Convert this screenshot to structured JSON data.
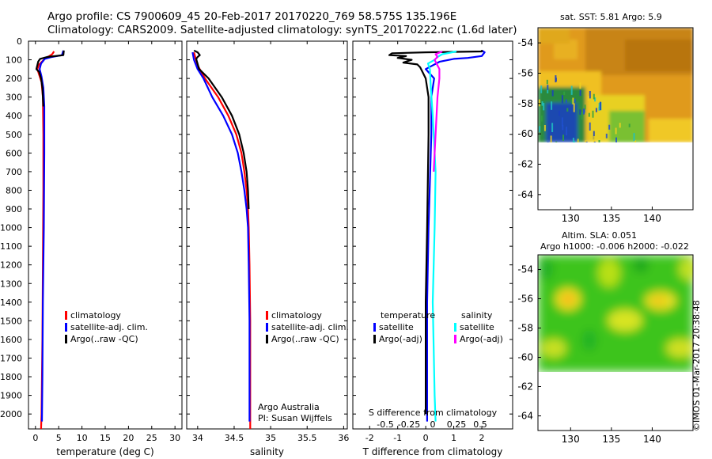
{
  "title_line1": "Argo profile: CS 7900609_45 20-Feb-2017 20170220_769 58.575S 135.196E",
  "title_line2": "Climatology: CARS2009. Satellite-adjusted climatology: synTS_20170222.nc (1.6d later)",
  "footer": "©IMOS 01-Mar-2017 20:38:48",
  "colors": {
    "climatology": "#ff0000",
    "satellite": "#0000ff",
    "argo": "#000000",
    "t_sat": "#0000ff",
    "s_sat": "#00ffff",
    "s_argo": "#ff00ff"
  },
  "depth_ticks": [
    0,
    100,
    200,
    300,
    400,
    500,
    600,
    700,
    800,
    900,
    1000,
    1100,
    1200,
    1300,
    1400,
    1500,
    1600,
    1700,
    1800,
    1900,
    2000
  ],
  "chart_data": [
    {
      "type": "line",
      "xlabel": "temperature (deg C)",
      "xticks": [
        0,
        5,
        10,
        15,
        20,
        25,
        30
      ],
      "xlim": [
        -1.5,
        31.5
      ],
      "ylim": [
        2080,
        0
      ],
      "legend": [
        "climatology",
        "satellite-adj. clim.",
        "Argo(..raw -QC)"
      ],
      "series": [
        {
          "name": "climatology",
          "color": "#ff0000",
          "points": [
            [
              4.0,
              55
            ],
            [
              3.6,
              70
            ],
            [
              2.0,
              95
            ],
            [
              0.8,
              125
            ],
            [
              0.4,
              150
            ],
            [
              0.8,
              180
            ],
            [
              1.3,
              220
            ],
            [
              1.6,
              300
            ],
            [
              1.7,
              500
            ],
            [
              1.7,
              800
            ],
            [
              1.6,
              1200
            ],
            [
              1.5,
              1600
            ],
            [
              1.3,
              2000
            ],
            [
              1.2,
              2080
            ]
          ]
        },
        {
          "name": "satellite-adj. clim.",
          "color": "#0000ff",
          "points": [
            [
              6.0,
              50
            ],
            [
              5.7,
              75
            ],
            [
              3.5,
              85
            ],
            [
              2.0,
              95
            ],
            [
              1.2,
              120
            ],
            [
              0.9,
              150
            ],
            [
              1.3,
              190
            ],
            [
              1.7,
              250
            ],
            [
              1.9,
              350
            ],
            [
              1.9,
              600
            ],
            [
              1.8,
              1000
            ],
            [
              1.6,
              1400
            ],
            [
              1.5,
              1800
            ],
            [
              1.4,
              2040
            ]
          ]
        },
        {
          "name": "Argo(..raw -QC)",
          "color": "#000000",
          "points": [
            [
              6.1,
              50
            ],
            [
              6.0,
              75
            ],
            [
              2.5,
              85
            ],
            [
              1.0,
              95
            ],
            [
              0.6,
              110
            ],
            [
              0.2,
              150
            ],
            [
              0.8,
              165
            ],
            [
              1.2,
              200
            ],
            [
              1.5,
              250
            ],
            [
              1.7,
              350
            ]
          ]
        }
      ]
    },
    {
      "type": "line",
      "xlabel": "salinity",
      "xticks": [
        34,
        34.5,
        35,
        35.5,
        36
      ],
      "xlim": [
        33.85,
        36.05
      ],
      "ylim": [
        2080,
        0
      ],
      "legend": [
        "climatology",
        "satellite-adj. clim.",
        "Argo(..raw -QC)"
      ],
      "series": [
        {
          "name": "climatology",
          "color": "#ff0000",
          "points": [
            [
              33.95,
              60
            ],
            [
              33.97,
              90
            ],
            [
              34.0,
              130
            ],
            [
              34.1,
              200
            ],
            [
              34.28,
              300
            ],
            [
              34.42,
              400
            ],
            [
              34.53,
              500
            ],
            [
              34.6,
              600
            ],
            [
              34.64,
              700
            ],
            [
              34.67,
              800
            ],
            [
              34.69,
              900
            ],
            [
              34.7,
              1000
            ],
            [
              34.71,
              1200
            ],
            [
              34.72,
              1500
            ],
            [
              34.72,
              1800
            ],
            [
              34.72,
              2080
            ]
          ]
        },
        {
          "name": "satellite-adj. clim.",
          "color": "#0000ff",
          "points": [
            [
              33.93,
              60
            ],
            [
              33.95,
              100
            ],
            [
              34.0,
              150
            ],
            [
              34.08,
              200
            ],
            [
              34.2,
              300
            ],
            [
              34.35,
              400
            ],
            [
              34.47,
              500
            ],
            [
              34.55,
              600
            ],
            [
              34.6,
              700
            ],
            [
              34.64,
              800
            ],
            [
              34.67,
              900
            ],
            [
              34.69,
              1000
            ],
            [
              34.7,
              1200
            ],
            [
              34.71,
              1500
            ],
            [
              34.71,
              1800
            ],
            [
              34.71,
              2040
            ]
          ]
        },
        {
          "name": "Argo(..raw -QC)",
          "color": "#000000",
          "points": [
            [
              33.95,
              50
            ],
            [
              34.0,
              60
            ],
            [
              34.03,
              75
            ],
            [
              34.0,
              85
            ],
            [
              33.98,
              95
            ],
            [
              34.02,
              150
            ],
            [
              34.15,
              200
            ],
            [
              34.33,
              300
            ],
            [
              34.47,
              400
            ],
            [
              34.57,
              500
            ],
            [
              34.63,
              600
            ],
            [
              34.67,
              700
            ],
            [
              34.69,
              800
            ],
            [
              34.7,
              900
            ]
          ]
        }
      ],
      "annotation": [
        "Argo Australia",
        "PI: Susan Wijffels"
      ]
    },
    {
      "type": "line",
      "xlabel": "T difference from climatology",
      "xticks": [
        -2,
        -1,
        0,
        1,
        2
      ],
      "xlim": [
        -2.6,
        3.1
      ],
      "sublabel": "S difference from climatology",
      "sticks": [
        -0.5,
        -0.25,
        0,
        0.25,
        0.5
      ],
      "ylim": [
        2080,
        0
      ],
      "legend_titles": [
        "temperature",
        "salinity"
      ],
      "legend": [
        [
          "satellite",
          "Argo(-adj)"
        ],
        [
          "satellite",
          "Argo(-adj)"
        ]
      ],
      "series": [
        {
          "name": "T satellite",
          "color": "#0000ff",
          "points": [
            [
              2.0,
              50
            ],
            [
              2.1,
              60
            ],
            [
              2.0,
              80
            ],
            [
              1.5,
              90
            ],
            [
              1.0,
              95
            ],
            [
              0.5,
              110
            ],
            [
              0.0,
              150
            ],
            [
              0.3,
              200
            ],
            [
              0.2,
              300
            ],
            [
              0.2,
              500
            ],
            [
              0.1,
              1000
            ],
            [
              0.05,
              1400
            ],
            [
              0.05,
              1900
            ],
            [
              0.05,
              2040
            ]
          ]
        },
        {
          "name": "T Argo(-adj)",
          "color": "#000000",
          "points": [
            [
              2.0,
              48
            ],
            [
              2.0,
              55
            ],
            [
              0.0,
              60
            ],
            [
              -1.2,
              65
            ],
            [
              -1.3,
              75
            ],
            [
              -0.7,
              80
            ],
            [
              -1.0,
              90
            ],
            [
              -0.5,
              100
            ],
            [
              -0.8,
              115
            ],
            [
              -0.3,
              125
            ],
            [
              -0.2,
              140
            ],
            [
              -0.1,
              170
            ],
            [
              0.0,
              200
            ],
            [
              0.1,
              300
            ],
            [
              0.1,
              500
            ],
            [
              0.05,
              1000
            ],
            [
              0.0,
              1400
            ],
            [
              0.0,
              1900
            ],
            [
              0.0,
              2000
            ]
          ]
        },
        {
          "name": "S satellite",
          "color": "#00ffff",
          "points": [
            [
              0.25,
              55
            ],
            [
              0.1,
              70
            ],
            [
              0.05,
              85
            ],
            [
              0.02,
              100
            ],
            [
              -0.05,
              120
            ],
            [
              -0.03,
              150
            ],
            [
              -0.02,
              250
            ],
            [
              0.0,
              400
            ],
            [
              0.02,
              600
            ],
            [
              0.03,
              700
            ],
            [
              0.02,
              1000
            ],
            [
              0.0,
              1400
            ],
            [
              0.02,
              1900
            ],
            [
              0.03,
              2040
            ]
          ]
        },
        {
          "name": "S Argo(-adj)",
          "color": "#ff00ff",
          "points": [
            [
              0.1,
              55
            ],
            [
              0.03,
              70
            ],
            [
              0.05,
              85
            ],
            [
              0.02,
              100
            ],
            [
              0.07,
              150
            ],
            [
              0.07,
              200
            ],
            [
              0.05,
              300
            ],
            [
              0.04,
              400
            ],
            [
              0.02,
              600
            ],
            [
              0.01,
              700
            ]
          ]
        }
      ]
    },
    {
      "type": "heatmap",
      "title": "sat. SST: 5.81  Argo: 5.9",
      "xticks": [
        130,
        135,
        140
      ],
      "yticks": [
        -54,
        -56,
        -58,
        -60,
        -62,
        -64
      ],
      "xlim": [
        126,
        145
      ],
      "ylim": [
        -65,
        -53
      ]
    },
    {
      "type": "heatmap",
      "title_line1": "Altim. SLA: 0.051",
      "title_line2": "Argo h1000: -0.006  h2000: -0.022",
      "xticks": [
        130,
        135,
        140
      ],
      "yticks": [
        -54,
        -56,
        -58,
        -60,
        -62,
        -64
      ],
      "xlim": [
        126,
        145
      ],
      "ylim": [
        -65,
        -53
      ]
    }
  ]
}
